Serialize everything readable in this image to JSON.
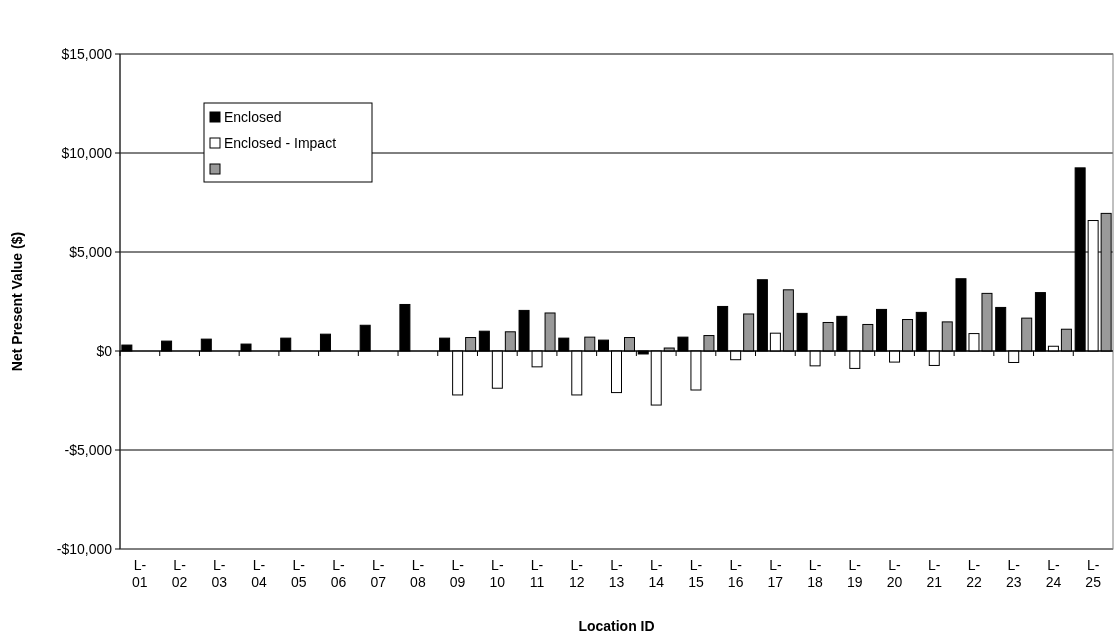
{
  "chart_data": {
    "type": "bar",
    "xlabel": "Location ID",
    "ylabel": "Net Present Value ($)",
    "categories": [
      "L-01",
      "L-02",
      "L-03",
      "L-04",
      "L-05",
      "L-06",
      "L-07",
      "L-08",
      "L-09",
      "L-10",
      "L-11",
      "L-12",
      "L-13",
      "L-14",
      "L-15",
      "L-16",
      "L-17",
      "L-18",
      "L-19",
      "L-20",
      "L-21",
      "L-22",
      "L-23",
      "L-24",
      "L-25"
    ],
    "series": [
      {
        "name": "Enclosed",
        "color": "#000000",
        "values": [
          300,
          500,
          600,
          350,
          650,
          850,
          1300,
          2350,
          650,
          1000,
          2050,
          650,
          550,
          -150,
          700,
          2250,
          3600,
          1900,
          1750,
          2100,
          1950,
          3650,
          2200,
          2950,
          9250
        ]
      },
      {
        "name": "Enclosed - Impact",
        "color": "#ffffff",
        "values": [
          null,
          null,
          null,
          null,
          null,
          null,
          null,
          null,
          -2220,
          -1880,
          -800,
          -2220,
          -2100,
          -2730,
          -1970,
          -440,
          900,
          -750,
          -880,
          -560,
          -730,
          880,
          -580,
          240,
          6590
        ]
      },
      {
        "color": "#999999",
        "values": [
          null,
          null,
          null,
          null,
          null,
          null,
          null,
          null,
          680,
          970,
          1920,
          700,
          680,
          150,
          780,
          1870,
          3090,
          1440,
          1340,
          1590,
          1470,
          2910,
          1660,
          1100,
          6950
        ]
      }
    ],
    "ylim": [
      -10000,
      15000
    ],
    "yticks": [
      {
        "value": -10000,
        "label": "-$10,000"
      },
      {
        "value": -5000,
        "label": "-$5,000"
      },
      {
        "value": 0,
        "label": "$0"
      },
      {
        "value": 5000,
        "label": "$5,000"
      },
      {
        "value": 10000,
        "label": "$10,000"
      },
      {
        "value": 15000,
        "label": "$15,000"
      }
    ],
    "grid": "y",
    "legend": "top left"
  }
}
